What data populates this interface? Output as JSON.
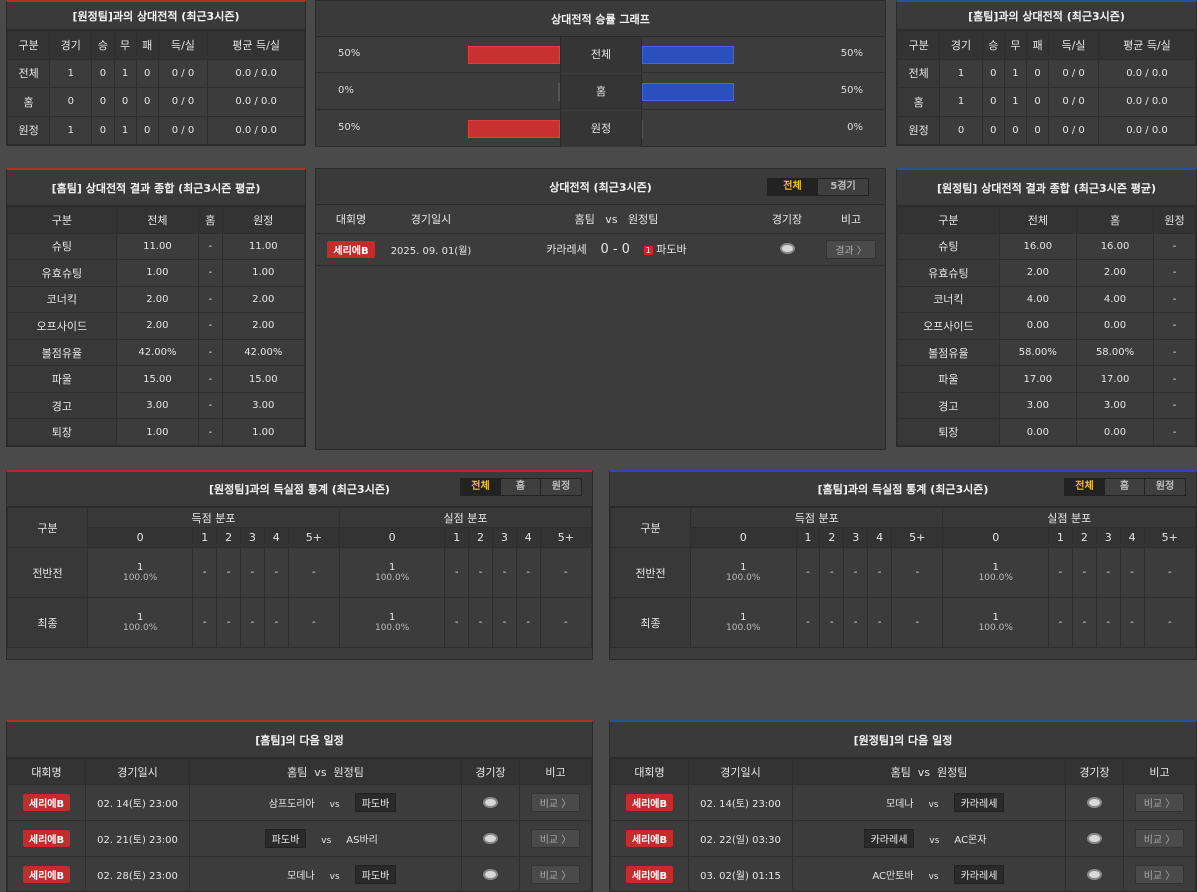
{
  "h2h_away": {
    "title": "[원정팀]과의 상대전적 (최근3시즌)",
    "headers": [
      "구분",
      "경기",
      "승",
      "무",
      "패",
      "득/실",
      "평균 득/실"
    ],
    "rows": [
      [
        "전체",
        "1",
        "0",
        "1",
        "0",
        "0 / 0",
        "0.0 / 0.0"
      ],
      [
        "홈",
        "0",
        "0",
        "0",
        "0",
        "0 / 0",
        "0.0 / 0.0"
      ],
      [
        "원정",
        "1",
        "0",
        "1",
        "0",
        "0 / 0",
        "0.0 / 0.0"
      ]
    ]
  },
  "h2h_home": {
    "title": "[홈팀]과의 상대전적 (최근3시즌)",
    "headers": [
      "구분",
      "경기",
      "승",
      "무",
      "패",
      "득/실",
      "평균 득/실"
    ],
    "rows": [
      [
        "전체",
        "1",
        "0",
        "1",
        "0",
        "0 / 0",
        "0.0 / 0.0"
      ],
      [
        "홈",
        "1",
        "0",
        "1",
        "0",
        "0 / 0",
        "0.0 / 0.0"
      ],
      [
        "원정",
        "0",
        "0",
        "0",
        "0",
        "0 / 0",
        "0.0 / 0.0"
      ]
    ]
  },
  "win_graph": {
    "title": "상대전적 승률 그래프",
    "rows": [
      {
        "label": "전체",
        "left_pct": "50%",
        "right_pct": "50%",
        "left_fill": 0.5,
        "right_fill": 0.5
      },
      {
        "label": "홈",
        "left_pct": "0%",
        "right_pct": "50%",
        "left_fill": 0,
        "right_fill": 0.5
      },
      {
        "label": "원정",
        "left_pct": "50%",
        "right_pct": "0%",
        "left_fill": 0.5,
        "right_fill": 0
      }
    ],
    "colors": {
      "left": "#c93030",
      "right": "#2c4fc0"
    }
  },
  "home_summary": {
    "title": "[홈팀] 상대전적 결과 종합 (최근3시즌 평균)",
    "headers": [
      "구분",
      "전체",
      "홈",
      "원정"
    ],
    "rows": [
      [
        "슈팅",
        "11.00",
        "-",
        "11.00"
      ],
      [
        "유효슈팅",
        "1.00",
        "-",
        "1.00"
      ],
      [
        "코너킥",
        "2.00",
        "-",
        "2.00"
      ],
      [
        "오프사이드",
        "2.00",
        "-",
        "2.00"
      ],
      [
        "볼점유율",
        "42.00%",
        "-",
        "42.00%"
      ],
      [
        "파울",
        "15.00",
        "-",
        "15.00"
      ],
      [
        "경고",
        "3.00",
        "-",
        "3.00"
      ],
      [
        "퇴장",
        "1.00",
        "-",
        "1.00"
      ]
    ]
  },
  "away_summary": {
    "title": "[원정팀] 상대전적 결과 종합 (최근3시즌 평균)",
    "headers": [
      "구분",
      "전체",
      "홈",
      "원정"
    ],
    "rows": [
      [
        "슈팅",
        "16.00",
        "16.00",
        "-"
      ],
      [
        "유효슈팅",
        "2.00",
        "2.00",
        "-"
      ],
      [
        "코너킥",
        "4.00",
        "4.00",
        "-"
      ],
      [
        "오프사이드",
        "0.00",
        "0.00",
        "-"
      ],
      [
        "볼점유율",
        "58.00%",
        "58.00%",
        "-"
      ],
      [
        "파울",
        "17.00",
        "17.00",
        "-"
      ],
      [
        "경고",
        "3.00",
        "3.00",
        "-"
      ],
      [
        "퇴장",
        "0.00",
        "0.00",
        "-"
      ]
    ]
  },
  "h2h_matches": {
    "title": "상대전적 (최근3시즌)",
    "tabs": [
      "전체",
      "5경기"
    ],
    "headers": {
      "league": "대회명",
      "date": "경기일시",
      "teams": "홈팀   vs   원정팀",
      "venue": "경기장",
      "note": "비고"
    },
    "match": {
      "league": "세리에B",
      "date": "2025. 09. 01(월)",
      "home": "카라레세",
      "score": "0 - 0",
      "card": "1",
      "away": "파도바",
      "button": "결과 〉"
    }
  },
  "goals_away": {
    "title": "[원정팀]과의 득실점 통계 (최근3시즌)",
    "tabs": [
      "전체",
      "홈",
      "원정"
    ],
    "col_label": "구분",
    "group_scored": "득점 분포",
    "group_conceded": "실점 분포",
    "buckets": [
      "0",
      "1",
      "2",
      "3",
      "4",
      "5+"
    ],
    "rows": [
      {
        "label": "전반전",
        "scored": [
          [
            "1",
            "100.0%"
          ],
          "-",
          "-",
          "-",
          "-",
          "-"
        ],
        "conceded": [
          [
            "1",
            "100.0%"
          ],
          "-",
          "-",
          "-",
          "-",
          "-"
        ]
      },
      {
        "label": "최종",
        "scored": [
          [
            "1",
            "100.0%"
          ],
          "-",
          "-",
          "-",
          "-",
          "-"
        ],
        "conceded": [
          [
            "1",
            "100.0%"
          ],
          "-",
          "-",
          "-",
          "-",
          "-"
        ]
      }
    ]
  },
  "goals_home": {
    "title": "[홈팀]과의 득실점 통계 (최근3시즌)",
    "tabs": [
      "전체",
      "홈",
      "원정"
    ],
    "col_label": "구분",
    "group_scored": "득점 분포",
    "group_conceded": "실점 분포",
    "buckets": [
      "0",
      "1",
      "2",
      "3",
      "4",
      "5+"
    ],
    "rows": [
      {
        "label": "전반전",
        "scored": [
          [
            "1",
            "100.0%"
          ],
          "-",
          "-",
          "-",
          "-",
          "-"
        ],
        "conceded": [
          [
            "1",
            "100.0%"
          ],
          "-",
          "-",
          "-",
          "-",
          "-"
        ]
      },
      {
        "label": "최종",
        "scored": [
          [
            "1",
            "100.0%"
          ],
          "-",
          "-",
          "-",
          "-",
          "-"
        ],
        "conceded": [
          [
            "1",
            "100.0%"
          ],
          "-",
          "-",
          "-",
          "-",
          "-"
        ]
      }
    ]
  },
  "next_home": {
    "title": "[홈팀]의 다음 일정",
    "headers": {
      "league": "대회명",
      "date": "경기일시",
      "teams": "홈팀  vs  원정팀",
      "venue": "경기장",
      "note": "비고"
    },
    "rows": [
      {
        "league": "세리에B",
        "date": "02. 14(토) 23:00",
        "home": "삼프도리아",
        "away": "파도바",
        "hl": "away",
        "button": "비교 〉"
      },
      {
        "league": "세리에B",
        "date": "02. 21(토) 23:00",
        "home": "파도바",
        "away": "AS바리",
        "hl": "home",
        "button": "비교 〉"
      },
      {
        "league": "세리에B",
        "date": "02. 28(토) 23:00",
        "home": "모데나",
        "away": "파도바",
        "hl": "away",
        "button": "비교 〉"
      }
    ]
  },
  "next_away": {
    "title": "[원정팀]의 다음 일정",
    "headers": {
      "league": "대회명",
      "date": "경기일시",
      "teams": "홈팀  vs  원정팀",
      "venue": "경기장",
      "note": "비고"
    },
    "rows": [
      {
        "league": "세리에B",
        "date": "02. 14(토) 23:00",
        "home": "모데나",
        "away": "카라레세",
        "hl": "away",
        "button": "비교 〉"
      },
      {
        "league": "세리에B",
        "date": "02. 22(일) 03:30",
        "home": "카라레세",
        "away": "AC몬자",
        "hl": "home",
        "button": "비교 〉"
      },
      {
        "league": "세리에B",
        "date": "03. 02(월) 01:15",
        "home": "AC만토바",
        "away": "카라레세",
        "hl": "away",
        "button": "비교 〉"
      }
    ]
  },
  "vs_text": "vs"
}
